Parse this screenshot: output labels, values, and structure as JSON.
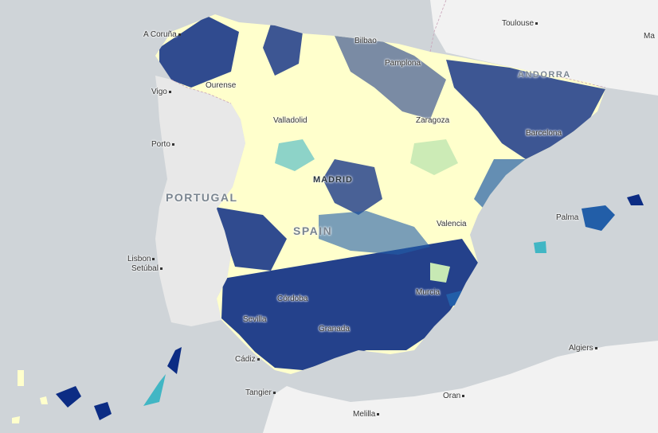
{
  "map": {
    "country_labels": [
      "PORTUGAL",
      "SPAIN",
      "ANDORRA"
    ],
    "capital_label": "MADRID",
    "cities": [
      "A Coruña",
      "Bilbao",
      "Pamplona",
      "Toulouse",
      "Ourense",
      "Vigo",
      "Valladolid",
      "Zaragoza",
      "Barcelona",
      "Porto",
      "Valencia",
      "Palma",
      "Lisbon",
      "Setúbal",
      "Córdoba",
      "Murcia",
      "Sevilla",
      "Granada",
      "Cádiz",
      "Tangier",
      "Oran",
      "Algiers",
      "Melilla",
      "Ma"
    ],
    "colors": {
      "sea": "#cfd4d8",
      "land_other": "#f2f2f2",
      "choropleth_low": "#ffffcc",
      "choropleth_mid_low": "#c7e9b4",
      "choropleth_mid": "#41b6c4",
      "choropleth_mid_high": "#225ea8",
      "choropleth_high": "#0c2c84"
    }
  }
}
